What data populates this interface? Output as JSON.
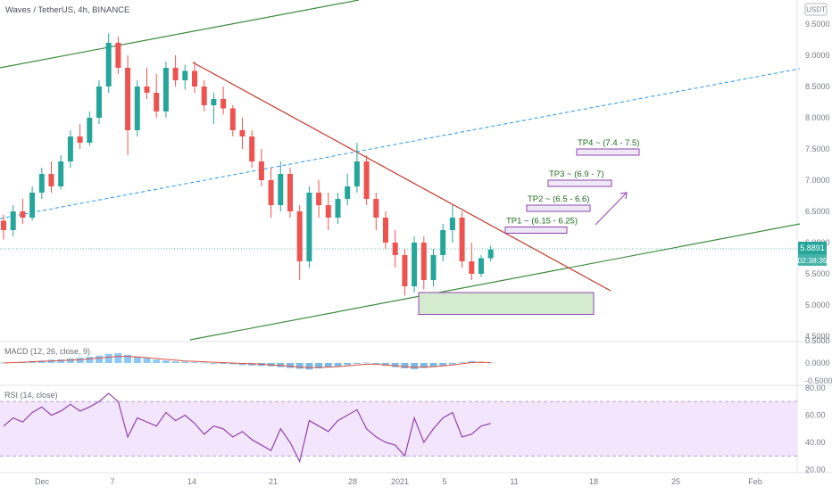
{
  "chart_data": {
    "type": "candlestick",
    "title": "Waves / TetherUS, 4h, BINANCE",
    "quote_currency": "USDT",
    "timeframe": "4h",
    "exchange": "BINANCE",
    "current_price": "5.8891",
    "countdown": "02:38:35",
    "price_ticks": [
      "9.5000",
      "9.0000",
      "8.5000",
      "8.0000",
      "7.5000",
      "7.0000",
      "6.5000",
      "6.0000",
      "5.5000",
      "5.0000",
      "4.5000"
    ],
    "price_ylim": [
      4.5,
      9.5
    ],
    "x_ticks": [
      "Dec",
      "7",
      "14",
      "21",
      "28",
      "2021",
      "5",
      "11",
      "18",
      "25",
      "Feb"
    ],
    "ohlc": [
      [
        6.35,
        6.45,
        6.05,
        6.2
      ],
      [
        6.2,
        6.6,
        6.1,
        6.5
      ],
      [
        6.5,
        6.7,
        6.3,
        6.4
      ],
      [
        6.4,
        6.9,
        6.35,
        6.8
      ],
      [
        6.8,
        7.2,
        6.7,
        7.1
      ],
      [
        7.1,
        7.3,
        6.8,
        6.9
      ],
      [
        6.9,
        7.4,
        6.85,
        7.3
      ],
      [
        7.3,
        7.8,
        7.2,
        7.7
      ],
      [
        7.7,
        7.9,
        7.5,
        7.6
      ],
      [
        7.6,
        8.1,
        7.55,
        8.0
      ],
      [
        8.0,
        8.6,
        7.9,
        8.5
      ],
      [
        8.5,
        9.35,
        8.4,
        9.2
      ],
      [
        9.2,
        9.3,
        8.7,
        8.8
      ],
      [
        8.8,
        9.0,
        7.4,
        7.8
      ],
      [
        7.8,
        8.6,
        7.7,
        8.5
      ],
      [
        8.5,
        8.8,
        8.3,
        8.4
      ],
      [
        8.4,
        8.7,
        8.0,
        8.1
      ],
      [
        8.1,
        8.9,
        8.0,
        8.8
      ],
      [
        8.8,
        9.0,
        8.5,
        8.6
      ],
      [
        8.6,
        8.85,
        8.45,
        8.75
      ],
      [
        8.75,
        8.9,
        8.4,
        8.5
      ],
      [
        8.5,
        8.6,
        8.1,
        8.2
      ],
      [
        8.2,
        8.4,
        7.9,
        8.3
      ],
      [
        8.3,
        8.5,
        8.05,
        8.15
      ],
      [
        8.15,
        8.2,
        7.7,
        7.8
      ],
      [
        7.8,
        8.0,
        7.5,
        7.7
      ],
      [
        7.7,
        7.8,
        7.2,
        7.3
      ],
      [
        7.3,
        7.5,
        6.9,
        7.0
      ],
      [
        7.0,
        7.2,
        6.4,
        6.6
      ],
      [
        6.6,
        7.3,
        6.5,
        7.1
      ],
      [
        7.1,
        7.2,
        6.4,
        6.5
      ],
      [
        6.5,
        6.6,
        5.4,
        5.7
      ],
      [
        5.7,
        6.9,
        5.6,
        6.8
      ],
      [
        6.8,
        7.0,
        6.4,
        6.6
      ],
      [
        6.6,
        6.8,
        6.2,
        6.4
      ],
      [
        6.4,
        6.8,
        6.3,
        6.7
      ],
      [
        6.7,
        7.1,
        6.6,
        6.9
      ],
      [
        6.9,
        7.6,
        6.8,
        7.3
      ],
      [
        7.3,
        7.4,
        6.6,
        6.7
      ],
      [
        6.7,
        6.8,
        6.2,
        6.4
      ],
      [
        6.4,
        6.5,
        5.9,
        6.0
      ],
      [
        6.0,
        6.2,
        5.6,
        5.8
      ],
      [
        5.8,
        5.9,
        5.15,
        5.3
      ],
      [
        5.3,
        6.1,
        5.2,
        6.0
      ],
      [
        6.0,
        6.1,
        5.25,
        5.4
      ],
      [
        5.4,
        5.9,
        5.3,
        5.8
      ],
      [
        5.8,
        6.3,
        5.7,
        6.2
      ],
      [
        6.2,
        6.6,
        6.0,
        6.4
      ],
      [
        6.4,
        6.5,
        5.6,
        5.7
      ],
      [
        5.7,
        6.0,
        5.4,
        5.5
      ],
      [
        5.5,
        5.8,
        5.45,
        5.75
      ],
      [
        5.75,
        5.95,
        5.7,
        5.89
      ]
    ],
    "annotations": [
      {
        "label": "TP1 ~ (6.15 - 6.25)",
        "low": 6.15,
        "high": 6.25
      },
      {
        "label": "TP2 ~ (6.5 - 6.6)",
        "low": 6.5,
        "high": 6.6
      },
      {
        "label": "TP3 ~ (6.9 - 7)",
        "low": 6.9,
        "high": 7.0
      },
      {
        "label": "TP4 ~ (7.4 - 7.5)",
        "low": 7.4,
        "high": 7.5
      }
    ],
    "support_zone": [
      4.85,
      5.2
    ],
    "macd": {
      "label": "MACD (12, 26, close, 9)",
      "ticks": [
        "0.5000",
        "0.0000",
        "-0.5000"
      ],
      "ylim": [
        -0.5,
        0.5
      ],
      "histogram": [
        0.01,
        0.02,
        0.03,
        0.05,
        0.06,
        0.08,
        0.09,
        0.11,
        0.13,
        0.15,
        0.18,
        0.22,
        0.24,
        0.2,
        0.15,
        0.12,
        0.08,
        0.06,
        0.04,
        0.03,
        0.02,
        0.01,
        -0.01,
        -0.02,
        -0.03,
        -0.05,
        -0.06,
        -0.07,
        -0.08,
        -0.1,
        -0.12,
        -0.14,
        -0.16,
        -0.13,
        -0.1,
        -0.08,
        -0.05,
        -0.02,
        0.01,
        -0.02,
        -0.06,
        -0.1,
        -0.13,
        -0.15,
        -0.12,
        -0.1,
        -0.07,
        -0.03,
        0.02,
        0.05,
        0.03,
        0.01
      ],
      "signal": [
        0.0,
        0.01,
        0.02,
        0.03,
        0.04,
        0.05,
        0.06,
        0.07,
        0.08,
        0.1,
        0.12,
        0.14,
        0.16,
        0.16,
        0.15,
        0.13,
        0.11,
        0.09,
        0.07,
        0.05,
        0.04,
        0.03,
        0.02,
        0.01,
        0.0,
        -0.01,
        -0.02,
        -0.03,
        -0.05,
        -0.06,
        -0.08,
        -0.1,
        -0.11,
        -0.11,
        -0.1,
        -0.09,
        -0.07,
        -0.05,
        -0.03,
        -0.03,
        -0.05,
        -0.07,
        -0.09,
        -0.1,
        -0.1,
        -0.09,
        -0.07,
        -0.05,
        -0.02,
        0.01,
        0.02,
        0.01
      ]
    },
    "rsi": {
      "label": "RSI (14, close)",
      "ticks": [
        "80.00",
        "60.00",
        "40.00",
        "20.00"
      ],
      "ylim": [
        20,
        80
      ],
      "band": [
        30,
        70
      ],
      "values": [
        52,
        58,
        55,
        62,
        66,
        60,
        63,
        68,
        63,
        66,
        70,
        76,
        70,
        44,
        58,
        55,
        52,
        62,
        56,
        60,
        54,
        46,
        52,
        50,
        44,
        48,
        42,
        38,
        34,
        50,
        40,
        26,
        56,
        52,
        48,
        56,
        60,
        64,
        50,
        44,
        40,
        38,
        30,
        58,
        40,
        50,
        58,
        62,
        44,
        46,
        52,
        54
      ]
    }
  }
}
